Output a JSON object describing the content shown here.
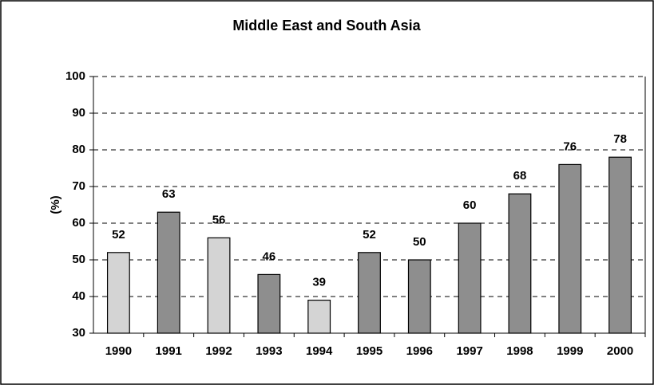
{
  "chart_data": {
    "type": "bar",
    "title": "Middle East and South Asia",
    "y_label": "(%)",
    "categories": [
      "1990",
      "1991",
      "1992",
      "1993",
      "1994",
      "1995",
      "1996",
      "1997",
      "1998",
      "1999",
      "2000"
    ],
    "values": [
      52,
      63,
      56,
      46,
      39,
      52,
      50,
      60,
      68,
      76,
      78
    ],
    "colors": [
      "#d4d4d4",
      "#8e8e8e",
      "#d4d4d4",
      "#8e8e8e",
      "#d4d4d4",
      "#8e8e8e",
      "#8e8e8e",
      "#8e8e8e",
      "#8e8e8e",
      "#8e8e8e",
      "#8e8e8e"
    ],
    "ylim": [
      30,
      100
    ],
    "yticks": [
      30,
      40,
      50,
      60,
      70,
      80,
      90,
      100
    ],
    "grid": true
  }
}
